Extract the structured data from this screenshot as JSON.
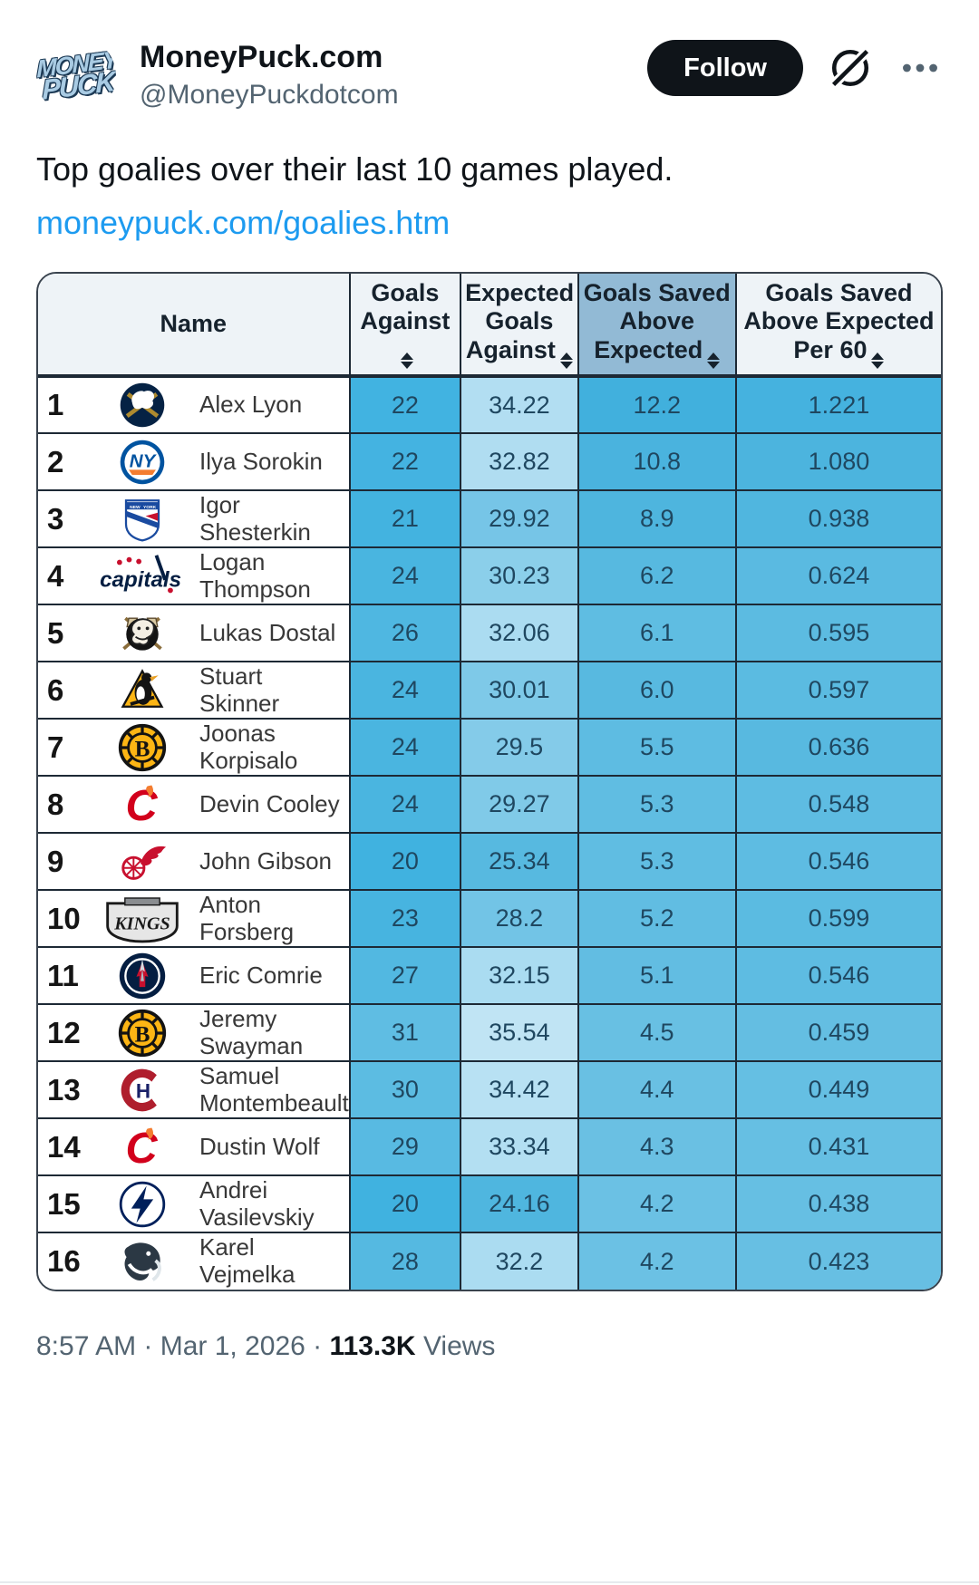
{
  "header": {
    "display_name": "MoneyPuck.com",
    "handle": "@MoneyPuckdotcom",
    "follow_label": "Follow",
    "avatar_line1": "MONEY",
    "avatar_line2": "PUCK"
  },
  "tweet": {
    "text": "Top goalies over their last 10 games played.",
    "link": "moneypuck.com/goalies.htm"
  },
  "table": {
    "columns": [
      {
        "label": "Name",
        "key": "name",
        "sortable": false,
        "highlight": false
      },
      {
        "label": "Goals Against",
        "key": "goals-against",
        "sortable": true,
        "highlight": false
      },
      {
        "label": "Expected Goals Against",
        "key": "expected-goals-against",
        "sortable": true,
        "highlight": false
      },
      {
        "label": "Goals Saved Above Expected",
        "key": "goals-saved-above-expected",
        "sortable": true,
        "highlight": true
      },
      {
        "label": "Goals Saved Above Expected Per 60",
        "key": "goals-saved-above-expected-per-60",
        "sortable": true,
        "highlight": false
      }
    ],
    "rows": [
      {
        "rank": "1",
        "team": "buffalo-sabres",
        "name": "Alex Lyon",
        "wrap": false,
        "values": [
          "22",
          "34.22",
          "12.2",
          "1.221"
        ],
        "colors": [
          "#41b3e1",
          "#b2def2",
          "#41b0dd",
          "#45b2df"
        ]
      },
      {
        "rank": "2",
        "team": "new-york-islanders",
        "name": "Ilya Sorokin",
        "wrap": false,
        "values": [
          "22",
          "32.82",
          "10.8",
          "1.080"
        ],
        "colors": [
          "#44b3e1",
          "#b0ddf1",
          "#4ab3de",
          "#4cb4de"
        ]
      },
      {
        "rank": "3",
        "team": "new-york-rangers",
        "name": "Igor Shesterkin",
        "wrap": false,
        "values": [
          "21",
          "29.92",
          "8.9",
          "0.938"
        ],
        "colors": [
          "#43b3e0",
          "#76c5e7",
          "#4eb5de",
          "#50b6df"
        ]
      },
      {
        "rank": "4",
        "team": "washington-capitals",
        "name": "Logan Thompson",
        "wrap": true,
        "values": [
          "24",
          "30.23",
          "6.2",
          "0.624"
        ],
        "colors": [
          "#49b5e0",
          "#8bcfea",
          "#57b9e0",
          "#5abae1"
        ]
      },
      {
        "rank": "5",
        "team": "anaheim-ducks",
        "name": "Lukas Dostal",
        "wrap": false,
        "values": [
          "26",
          "32.06",
          "6.1",
          "0.595"
        ],
        "colors": [
          "#4fb7e1",
          "#abdcf1",
          "#5fbde2",
          "#5cbbe1"
        ]
      },
      {
        "rank": "6",
        "team": "pittsburgh-penguins",
        "name": "Stuart Skinner",
        "wrap": false,
        "values": [
          "24",
          "30.01",
          "6.0",
          "0.597"
        ],
        "colors": [
          "#4ab5e0",
          "#7ec9e8",
          "#58b9e0",
          "#5bbbe1"
        ]
      },
      {
        "rank": "7",
        "team": "boston-bruins",
        "name": "Joonas Korpisalo",
        "wrap": true,
        "values": [
          "24",
          "29.5",
          "5.5",
          "0.636"
        ],
        "colors": [
          "#4ab5e0",
          "#84cbe9",
          "#5ebce2",
          "#58b9e0"
        ]
      },
      {
        "rank": "8",
        "team": "calgary-flames",
        "name": "Devin Cooley",
        "wrap": false,
        "values": [
          "24",
          "29.27",
          "5.3",
          "0.548"
        ],
        "colors": [
          "#4ab5e0",
          "#80cae8",
          "#60bde2",
          "#5ebce2"
        ]
      },
      {
        "rank": "9",
        "team": "detroit-red-wings",
        "name": "John Gibson",
        "wrap": false,
        "values": [
          "20",
          "25.34",
          "5.3",
          "0.546"
        ],
        "colors": [
          "#40b2e0",
          "#57b9e0",
          "#60bde2",
          "#5ebce2"
        ]
      },
      {
        "rank": "10",
        "team": "los-angeles-kings",
        "name": "Anton Forsberg",
        "wrap": true,
        "values": [
          "23",
          "28.2",
          "5.2",
          "0.599"
        ],
        "colors": [
          "#47b4e0",
          "#72c4e6",
          "#61bde2",
          "#5bbbe1"
        ]
      },
      {
        "rank": "11",
        "team": "winnipeg-jets",
        "name": "Eric Comrie",
        "wrap": false,
        "values": [
          "27",
          "32.15",
          "5.1",
          "0.546"
        ],
        "colors": [
          "#52b8e1",
          "#aadcf1",
          "#62bde2",
          "#5ebce2"
        ]
      },
      {
        "rank": "12",
        "team": "boston-bruins",
        "name": "Jeremy Swayman",
        "wrap": true,
        "values": [
          "31",
          "35.54",
          "4.5",
          "0.459"
        ],
        "colors": [
          "#5fbde3",
          "#c0e4f4",
          "#68c0e3",
          "#64bee2"
        ]
      },
      {
        "rank": "13",
        "team": "montreal-canadiens",
        "name": "Samuel Montembeault",
        "wrap": true,
        "values": [
          "30",
          "34.42",
          "4.4",
          "0.449"
        ],
        "colors": [
          "#5cbce2",
          "#b8e1f3",
          "#69c0e3",
          "#65bfe3"
        ]
      },
      {
        "rank": "14",
        "team": "calgary-flames",
        "name": "Dustin Wolf",
        "wrap": false,
        "values": [
          "29",
          "33.34",
          "4.3",
          "0.431"
        ],
        "colors": [
          "#58bae2",
          "#b3dff2",
          "#6ac0e3",
          "#66bfe3"
        ]
      },
      {
        "rank": "15",
        "team": "tampa-bay-lightning",
        "name": "Andrei Vasilevskiy",
        "wrap": true,
        "values": [
          "20",
          "24.16",
          "4.2",
          "0.438"
        ],
        "colors": [
          "#40b2e0",
          "#4fb6df",
          "#6bc1e4",
          "#66bfe3"
        ]
      },
      {
        "rank": "16",
        "team": "utah-mammoth",
        "name": "Karel Vejmelka",
        "wrap": true,
        "values": [
          "28",
          "32.2",
          "4.2",
          "0.423"
        ],
        "colors": [
          "#55b9e1",
          "#abdcf1",
          "#6bc1e4",
          "#67bfe3"
        ]
      }
    ]
  },
  "footer": {
    "timestamp": "8:57 AM · Mar 1, 2026",
    "separator": "·",
    "views_count": "113.3K",
    "views_label": "Views"
  },
  "colors": {
    "link_blue": "#1d9bf0",
    "follow_bg": "#0f1419",
    "header_bg": "#eef3f7",
    "header_highlight": "#92bad5",
    "table_border": "#1d2935",
    "secondary_text": "#536471"
  }
}
